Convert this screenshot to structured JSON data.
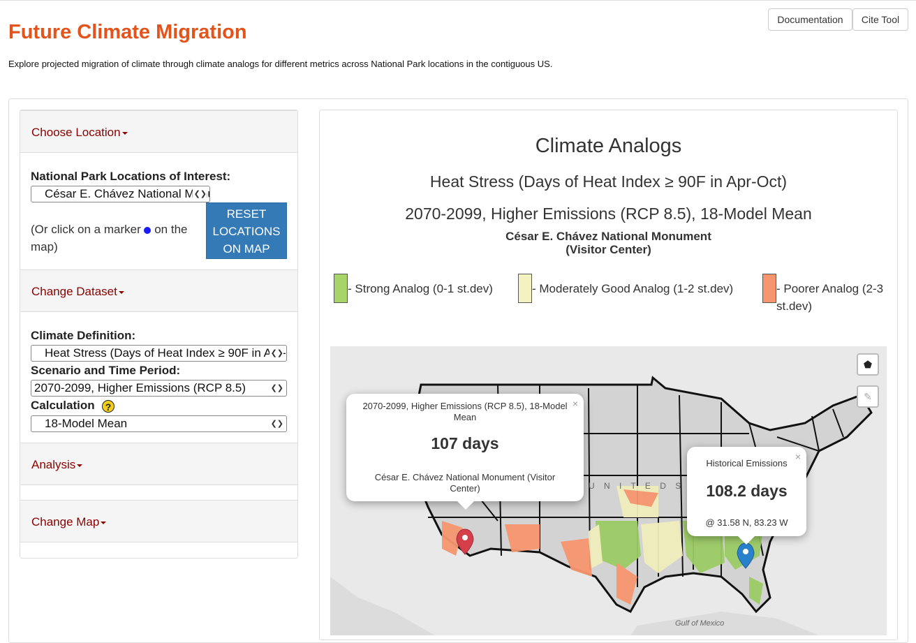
{
  "header": {
    "title": "Future Climate Migration",
    "description": "Explore projected migration of climate through climate analogs for different metrics across National Park locations in the contiguous US.",
    "documentation_label": "Documentation",
    "cite_label": "Cite Tool"
  },
  "sidebar": {
    "choose_location": "Choose Location",
    "park_label": "National Park Locations of Interest:",
    "park_value": "César E. Chávez National Monument (Visitor Center)",
    "help_pre": "(Or click on a marker",
    "help_post": "on the map)",
    "reset_label": "RESET LOCATIONS ON MAP",
    "change_dataset": "Change Dataset",
    "climate_def_label": "Climate Definition:",
    "climate_def_value": "Heat Stress (Days of Heat Index ≥ 90F in Apr-Oct)",
    "scenario_label": "Scenario and Time Period:",
    "scenario_value": "2070-2099, Higher Emissions (RCP 8.5)",
    "calc_label": "Calculation",
    "calc_help": "?",
    "calc_value": "18-Model Mean",
    "analysis": "Analysis",
    "change_map": "Change Map"
  },
  "main": {
    "title": "Climate Analogs",
    "subtitle1": "Heat Stress (Days of Heat Index ≥ 90F in Apr-Oct)",
    "subtitle2": "2070-2099, Higher Emissions (RCP 8.5), 18-Model Mean",
    "park_line1": "César E. Chávez National Monument",
    "park_line2": "(Visitor Center)",
    "legend": [
      {
        "label": "- Strong Analog (0-1 st.dev)",
        "color": "#a8d56a"
      },
      {
        "label": "- Moderately Good Analog (1-2 st.dev)",
        "color": "#f4f2c0"
      },
      {
        "label": "- Poorer Analog (2-3 st.dev)",
        "color": "#f7956f"
      }
    ]
  },
  "map": {
    "popup_future": {
      "header": "2070-2099, Higher Emissions (RCP 8.5), 18-Model Mean",
      "value": "107 days",
      "place": "César E. Chávez National Monument (Visitor Center)"
    },
    "popup_hist": {
      "header": "Historical Emissions",
      "value": "108.2 days",
      "coords": "@ 31.58 N, 83.23 W"
    },
    "label_united": "U N I T E D   S T A T E S",
    "label_gulf": "Gulf of Mexico",
    "close": "×",
    "marker_red": "#d63e4a",
    "marker_blue": "#2a81cb"
  }
}
